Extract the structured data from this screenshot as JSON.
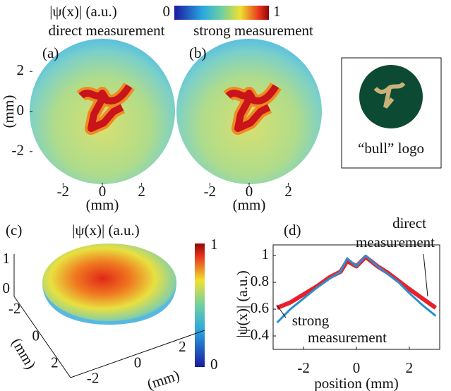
{
  "colorbar": {
    "label": "|ψ(x)| (a.u.)",
    "ticks": [
      0,
      1
    ]
  },
  "logo": {
    "caption": "“bull” logo"
  },
  "chart_data": [
    {
      "type": "image",
      "panel": "(a)",
      "title": "direct measurement",
      "xlabel": "(mm)",
      "ylabel": "(mm)",
      "xlim": [
        -3.7,
        3.7
      ],
      "ylim": [
        -3.7,
        3.7
      ],
      "xticks": [
        -2,
        0,
        2
      ],
      "yticks": [
        -2,
        0,
        2
      ]
    },
    {
      "type": "image",
      "panel": "(b)",
      "title": "strong measurement",
      "xlabel": "(mm)",
      "xlim": [
        -3.7,
        3.7
      ],
      "ylim": [
        -3.7,
        3.7
      ],
      "xticks": [
        -2,
        0,
        2
      ]
    },
    {
      "type": "surface",
      "panel": "(c)",
      "title": "|ψ(x)| (a.u.)",
      "xlabel": "(mm)",
      "ylabel": "(mm)",
      "xlim": [
        -3,
        3
      ],
      "ylim": [
        -3,
        3
      ],
      "zlim": [
        0,
        1
      ],
      "xticks": [
        -2,
        0,
        2
      ],
      "yticks": [
        -2,
        0,
        2
      ],
      "zticks": [
        0,
        1
      ],
      "colorbar_ticks": [
        0,
        1
      ]
    },
    {
      "type": "line",
      "panel": "(d)",
      "xlabel": "position (mm)",
      "ylabel": "|ψ(x)| (a.u.)",
      "xlim": [
        -3.15,
        3.15
      ],
      "ylim": [
        0.3,
        1.08
      ],
      "xticks": [
        -2,
        0,
        2
      ],
      "yticks": [
        0.4,
        0.6,
        0.8,
        1
      ],
      "x": [
        -3,
        -2.5,
        -2,
        -1.5,
        -1,
        -0.6,
        -0.35,
        0,
        0.35,
        0.8,
        1.2,
        1.6,
        2,
        2.5,
        3
      ],
      "series": [
        {
          "name": [
            "direct",
            "measurement"
          ],
          "color": "#e8202a",
          "values": [
            0.61,
            0.65,
            0.71,
            0.77,
            0.84,
            0.88,
            0.96,
            0.92,
            0.99,
            0.92,
            0.87,
            0.81,
            0.75,
            0.68,
            0.61
          ]
        },
        {
          "name": [
            "strong",
            "measurement"
          ],
          "color": "#2a8fd0",
          "values": [
            0.5,
            0.6,
            0.68,
            0.76,
            0.83,
            0.88,
            0.98,
            0.92,
            1.0,
            0.92,
            0.86,
            0.8,
            0.72,
            0.63,
            0.55
          ]
        }
      ]
    }
  ]
}
